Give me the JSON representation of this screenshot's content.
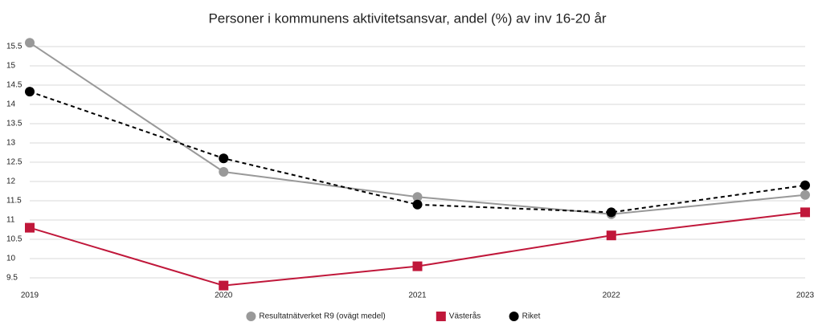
{
  "chart_data": {
    "type": "line",
    "title": "Personer i kommunens aktivitetsansvar, andel (%) av inv 16-20 år",
    "categories": [
      "2019",
      "2020",
      "2021",
      "2022",
      "2023"
    ],
    "series": [
      {
        "name": "Resultatnätverket R9 (ovägt medel)",
        "color": "#999999",
        "marker": "circle",
        "dashed": false,
        "values": [
          15.6,
          12.25,
          11.6,
          11.15,
          11.65
        ]
      },
      {
        "name": "Västerås",
        "color": "#c0173a",
        "marker": "square",
        "dashed": false,
        "values": [
          10.8,
          9.3,
          9.8,
          10.6,
          11.2
        ]
      },
      {
        "name": "Riket",
        "color": "#000000",
        "marker": "circle",
        "dashed": true,
        "values": [
          14.33,
          12.6,
          11.4,
          11.2,
          11.9
        ]
      }
    ],
    "ylim": [
      9,
      16
    ],
    "yticks": [
      9.5,
      10,
      10.5,
      11,
      11.5,
      12,
      12.5,
      13,
      13.5,
      14,
      14.5,
      15,
      15.5
    ],
    "grid": true,
    "legend": "bottom"
  }
}
